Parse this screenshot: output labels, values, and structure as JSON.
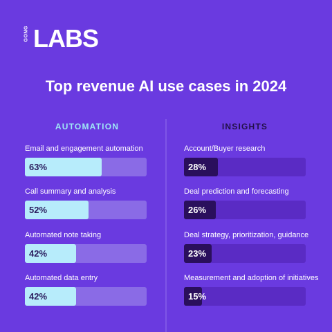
{
  "logo": {
    "small_text": "GONG",
    "big_text": "LABS"
  },
  "title": "Top revenue AI use cases in 2024",
  "chart_data": [
    {
      "type": "bar",
      "title": "AUTOMATION",
      "categories": [
        "Email and engagement automation",
        "Call summary and analysis",
        "Automated note taking",
        "Automated data entry"
      ],
      "values": [
        63,
        52,
        42,
        42
      ],
      "value_labels": [
        "63%",
        "52%",
        "42%",
        "42%"
      ],
      "xlim": [
        0,
        100
      ]
    },
    {
      "type": "bar",
      "title": "INSIGHTS",
      "categories": [
        "Account/Buyer research",
        "Deal prediction and forecasting",
        "Deal strategy, prioritization, guidance",
        "Measurement and adoption of initiatives"
      ],
      "values": [
        28,
        26,
        23,
        15
      ],
      "value_labels": [
        "28%",
        "26%",
        "23%",
        "15%"
      ],
      "xlim": [
        0,
        100
      ]
    }
  ],
  "colors": {
    "background": "#6a3ae0",
    "automation_fill": "#b7ecfb",
    "automation_track": "#8a6be6",
    "insights_fill": "#2a0f5c",
    "insights_track": "#5a2bc4",
    "automation_header": "#9fe8f6",
    "insights_header": "#221048"
  }
}
